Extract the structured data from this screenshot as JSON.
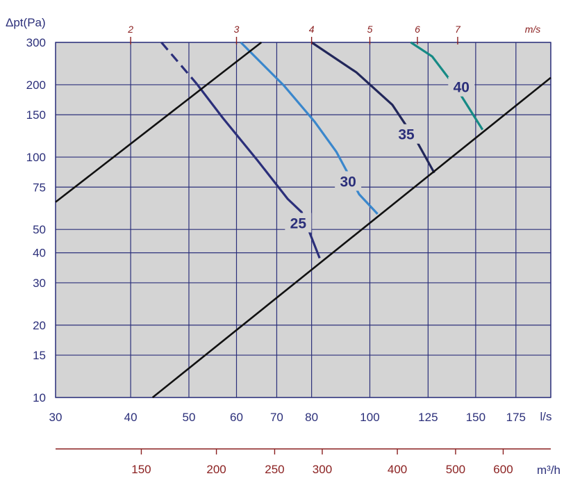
{
  "chart_data": {
    "type": "line",
    "ylabel": "Δpt(Pa)",
    "xlabel": "l/s",
    "x2label": "m³/h",
    "x3label": "m/s",
    "xscale": "log",
    "yscale": "log",
    "xlim": [
      30,
      200
    ],
    "ylim": [
      10,
      300
    ],
    "grid": true,
    "y_ticks": [
      300,
      200,
      150,
      100,
      75,
      50,
      40,
      30,
      20,
      15,
      10
    ],
    "x_ticks": [
      30,
      40,
      50,
      60,
      70,
      80,
      100,
      125,
      150,
      175
    ],
    "m3h_ticks": [
      150,
      200,
      250,
      300,
      400,
      500,
      600
    ],
    "ms_ticks": [
      2,
      3,
      4,
      5,
      6,
      7
    ],
    "colors": {
      "plot_bg": "#d4d4d4",
      "grid": "#2b2f7a",
      "boundary": "#111111",
      "curve_25": "#2b2f7a",
      "curve_30": "#3a87cc",
      "curve_35": "#22275a",
      "curve_40": "#168a85",
      "m3h_axis": "#8a1f1f"
    },
    "series": [
      {
        "name": "25",
        "type": "fan-curve",
        "dash_until_x": 51.5,
        "label_pos": {
          "x": 76,
          "y": 53
        },
        "x": [
          45,
          51.5,
          57,
          65,
          73,
          77,
          82.5
        ],
        "y": [
          300,
          202,
          145,
          97,
          67,
          59,
          38
        ]
      },
      {
        "name": "30",
        "type": "fan-curve",
        "label_pos": {
          "x": 92,
          "y": 79
        },
        "x": [
          61,
          72,
          81,
          88,
          96,
          103
        ],
        "y": [
          300,
          198,
          140,
          105,
          70,
          58
        ]
      },
      {
        "name": "35",
        "type": "fan-curve",
        "label_pos": {
          "x": 115,
          "y": 124
        },
        "x": [
          80,
          95,
          109,
          120,
          128
        ],
        "y": [
          300,
          225,
          165,
          115,
          86
        ]
      },
      {
        "name": "40",
        "type": "fan-curve",
        "label_pos": {
          "x": 142,
          "y": 195
        },
        "x": [
          117,
          127,
          140,
          154
        ],
        "y": [
          300,
          262,
          190,
          130
        ]
      },
      {
        "name": "",
        "type": "system-line",
        "x": [
          30,
          66
        ],
        "y": [
          65,
          300
        ]
      },
      {
        "name": "",
        "type": "system-line",
        "x": [
          43.5,
          200
        ],
        "y": [
          10,
          214
        ]
      }
    ]
  }
}
